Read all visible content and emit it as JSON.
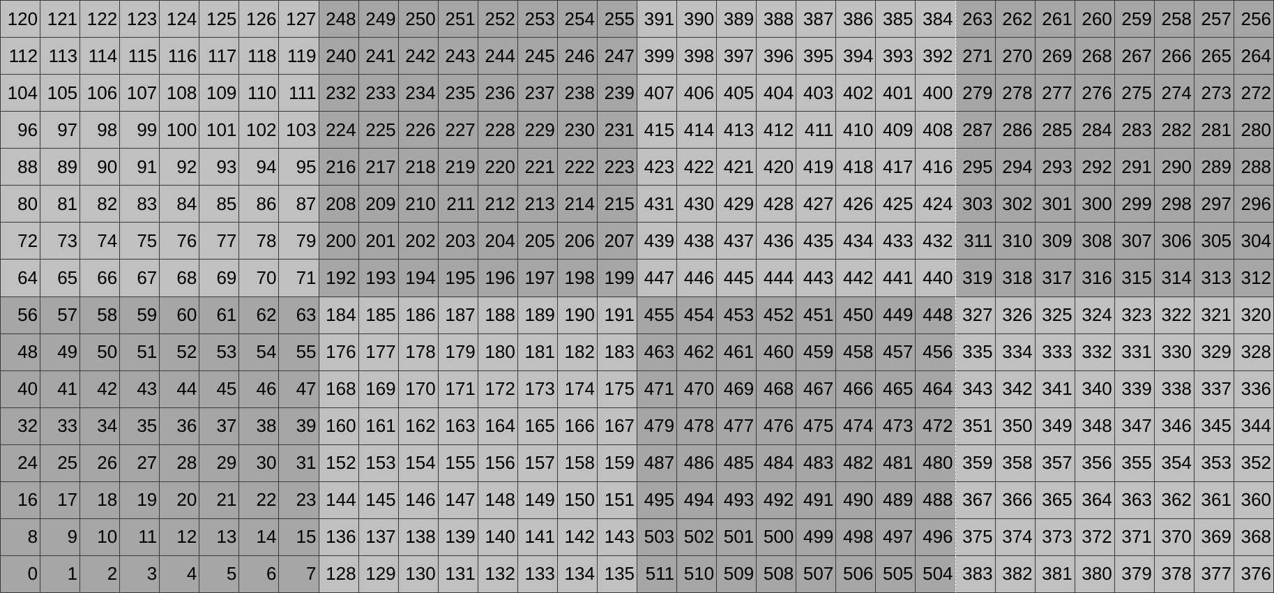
{
  "sheet": {
    "colors": {
      "light": "#c0c0c0",
      "dark": "#a6a6a6",
      "grid": "#3a3a3a"
    },
    "rows": [
      [
        120,
        121,
        122,
        123,
        124,
        125,
        126,
        127,
        248,
        249,
        250,
        251,
        252,
        253,
        254,
        255,
        391,
        390,
        389,
        388,
        387,
        386,
        385,
        384,
        263,
        262,
        261,
        260,
        259,
        258,
        257,
        256
      ],
      [
        112,
        113,
        114,
        115,
        116,
        117,
        118,
        119,
        240,
        241,
        242,
        243,
        244,
        245,
        246,
        247,
        399,
        398,
        397,
        396,
        395,
        394,
        393,
        392,
        271,
        270,
        269,
        268,
        267,
        266,
        265,
        264
      ],
      [
        104,
        105,
        106,
        107,
        108,
        109,
        110,
        111,
        232,
        233,
        234,
        235,
        236,
        237,
        238,
        239,
        407,
        406,
        405,
        404,
        403,
        402,
        401,
        400,
        279,
        278,
        277,
        276,
        275,
        274,
        273,
        272
      ],
      [
        96,
        97,
        98,
        99,
        100,
        101,
        102,
        103,
        224,
        225,
        226,
        227,
        228,
        229,
        230,
        231,
        415,
        414,
        413,
        412,
        411,
        410,
        409,
        408,
        287,
        286,
        285,
        284,
        283,
        282,
        281,
        280
      ],
      [
        88,
        89,
        90,
        91,
        92,
        93,
        94,
        95,
        216,
        217,
        218,
        219,
        220,
        221,
        222,
        223,
        423,
        422,
        421,
        420,
        419,
        418,
        417,
        416,
        295,
        294,
        293,
        292,
        291,
        290,
        289,
        288
      ],
      [
        80,
        81,
        82,
        83,
        84,
        85,
        86,
        87,
        208,
        209,
        210,
        211,
        212,
        213,
        214,
        215,
        431,
        430,
        429,
        428,
        427,
        426,
        425,
        424,
        303,
        302,
        301,
        300,
        299,
        298,
        297,
        296
      ],
      [
        72,
        73,
        74,
        75,
        76,
        77,
        78,
        79,
        200,
        201,
        202,
        203,
        204,
        205,
        206,
        207,
        439,
        438,
        437,
        436,
        435,
        434,
        433,
        432,
        311,
        310,
        309,
        308,
        307,
        306,
        305,
        304
      ],
      [
        64,
        65,
        66,
        67,
        68,
        69,
        70,
        71,
        192,
        193,
        194,
        195,
        196,
        197,
        198,
        199,
        447,
        446,
        445,
        444,
        443,
        442,
        441,
        440,
        319,
        318,
        317,
        316,
        315,
        314,
        313,
        312
      ],
      [
        56,
        57,
        58,
        59,
        60,
        61,
        62,
        63,
        184,
        185,
        186,
        187,
        188,
        189,
        190,
        191,
        455,
        454,
        453,
        452,
        451,
        450,
        449,
        448,
        327,
        326,
        325,
        324,
        323,
        322,
        321,
        320
      ],
      [
        48,
        49,
        50,
        51,
        52,
        53,
        54,
        55,
        176,
        177,
        178,
        179,
        180,
        181,
        182,
        183,
        463,
        462,
        461,
        460,
        459,
        458,
        457,
        456,
        335,
        334,
        333,
        332,
        331,
        330,
        329,
        328
      ],
      [
        40,
        41,
        42,
        43,
        44,
        45,
        46,
        47,
        168,
        169,
        170,
        171,
        172,
        173,
        174,
        175,
        471,
        470,
        469,
        468,
        467,
        466,
        465,
        464,
        343,
        342,
        341,
        340,
        339,
        338,
        337,
        336
      ],
      [
        32,
        33,
        34,
        35,
        36,
        37,
        38,
        39,
        160,
        161,
        162,
        163,
        164,
        165,
        166,
        167,
        479,
        478,
        477,
        476,
        475,
        474,
        473,
        472,
        351,
        350,
        349,
        348,
        347,
        346,
        345,
        344
      ],
      [
        24,
        25,
        26,
        27,
        28,
        29,
        30,
        31,
        152,
        153,
        154,
        155,
        156,
        157,
        158,
        159,
        487,
        486,
        485,
        484,
        483,
        482,
        481,
        480,
        359,
        358,
        357,
        356,
        355,
        354,
        353,
        352
      ],
      [
        16,
        17,
        18,
        19,
        20,
        21,
        22,
        23,
        144,
        145,
        146,
        147,
        148,
        149,
        150,
        151,
        495,
        494,
        493,
        492,
        491,
        490,
        489,
        488,
        367,
        366,
        365,
        364,
        363,
        362,
        361,
        360
      ],
      [
        8,
        9,
        10,
        11,
        12,
        13,
        14,
        15,
        136,
        137,
        138,
        139,
        140,
        141,
        142,
        143,
        503,
        502,
        501,
        500,
        499,
        498,
        497,
        496,
        375,
        374,
        373,
        372,
        371,
        370,
        369,
        368
      ],
      [
        0,
        1,
        2,
        3,
        4,
        5,
        6,
        7,
        128,
        129,
        130,
        131,
        132,
        133,
        134,
        135,
        511,
        510,
        509,
        508,
        507,
        506,
        505,
        504,
        383,
        382,
        381,
        380,
        379,
        378,
        377,
        376
      ]
    ]
  }
}
